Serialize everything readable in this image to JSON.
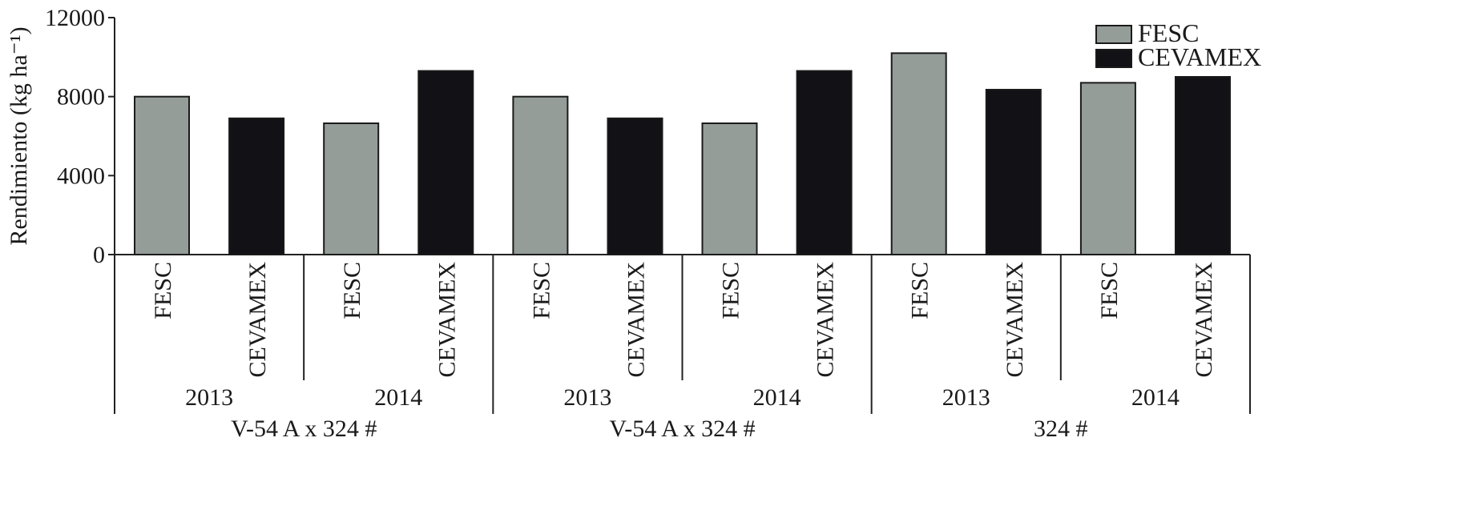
{
  "chart_data": {
    "type": "bar",
    "ylabel": "Rendimiento (kg ha⁻¹)",
    "ylim": [
      0,
      12000
    ],
    "yticks": [
      0,
      4000,
      8000,
      12000
    ],
    "ytick_labels": [
      "0",
      "4000",
      "8000",
      "12000"
    ],
    "legend_position": "top-right",
    "series": [
      {
        "name": "FESC",
        "color": "#959d99"
      },
      {
        "name": "CEVAMEX",
        "color": "#111116"
      }
    ],
    "categories": [
      "FESC",
      "CEVAMEX",
      "FESC",
      "CEVAMEX",
      "FESC",
      "CEVAMEX",
      "FESC",
      "CEVAMEX",
      "FESC",
      "CEVAMEX",
      "FESC",
      "CEVAMEX"
    ],
    "years": [
      {
        "label": "2013",
        "span": [
          0,
          1
        ]
      },
      {
        "label": "2014",
        "span": [
          2,
          3
        ]
      },
      {
        "label": "2013",
        "span": [
          4,
          5
        ]
      },
      {
        "label": "2014",
        "span": [
          6,
          7
        ]
      },
      {
        "label": "2013",
        "span": [
          8,
          9
        ]
      },
      {
        "label": "2014",
        "span": [
          10,
          11
        ]
      }
    ],
    "groups": [
      {
        "label": "V-54 A x 324 #",
        "span": [
          0,
          3
        ]
      },
      {
        "label": "V-54 A x 324 #",
        "span": [
          4,
          7
        ]
      },
      {
        "label": "324 #",
        "span": [
          8,
          11
        ]
      }
    ],
    "bars": [
      {
        "category": "FESC",
        "series": "FESC",
        "value": 8000
      },
      {
        "category": "CEVAMEX",
        "series": "CEVAMEX",
        "value": 6900
      },
      {
        "category": "FESC",
        "series": "FESC",
        "value": 6650
      },
      {
        "category": "CEVAMEX",
        "series": "CEVAMEX",
        "value": 9300
      },
      {
        "category": "FESC",
        "series": "FESC",
        "value": 8000
      },
      {
        "category": "CEVAMEX",
        "series": "CEVAMEX",
        "value": 6900
      },
      {
        "category": "FESC",
        "series": "FESC",
        "value": 6650
      },
      {
        "category": "CEVAMEX",
        "series": "CEVAMEX",
        "value": 9300
      },
      {
        "category": "FESC",
        "series": "FESC",
        "value": 10200
      },
      {
        "category": "CEVAMEX",
        "series": "CEVAMEX",
        "value": 8350
      },
      {
        "category": "FESC",
        "series": "FESC",
        "value": 8700
      },
      {
        "category": "CEVAMEX",
        "series": "CEVAMEX",
        "value": 9000
      }
    ]
  }
}
